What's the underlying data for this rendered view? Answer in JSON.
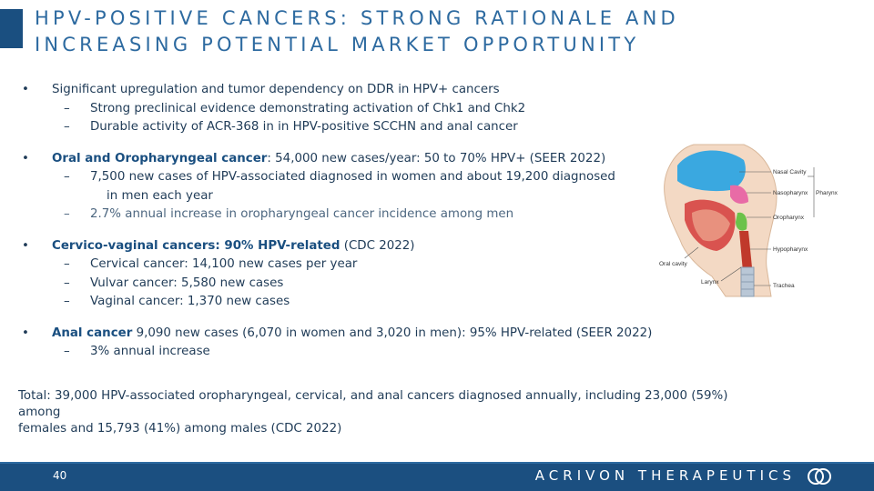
{
  "slide": {
    "title_line1": "HPV-POSITIVE CANCERS: STRONG RATIONALE AND",
    "title_line2": "INCREASING POTENTIAL MARKET OPPORTUNITY"
  },
  "bullets": {
    "b1": {
      "symbol": "•",
      "text": "Significant upregulation and tumor dependency on DDR in HPV+ cancers",
      "subs": [
        "Strong preclinical evidence demonstrating activation of Chk1 and Chk2",
        "Durable activity of ACR-368 in in HPV-positive SCCHN and anal cancer"
      ]
    },
    "b2": {
      "symbol": "•",
      "bold": "Oral and Oropharyngeal cancer",
      "text": ": 54,000 new cases/year: 50 to 70% HPV+ (SEER 2022)",
      "sub1_line1": "7,500 new cases of HPV-associated diagnosed in women and about 19,200 diagnosed",
      "sub1_line2": "in men each year",
      "sub2": "2.7% annual increase in oropharyngeal cancer incidence among men"
    },
    "b3": {
      "symbol": "•",
      "bold": "Cervico-vaginal cancers: 90% HPV-related",
      "text": " (CDC 2022)",
      "subs": [
        "Cervical cancer: 14,100 new cases per year",
        "Vulvar cancer: 5,580 new cases",
        "Vaginal cancer: 1,370 new cases"
      ]
    },
    "b4": {
      "symbol": "•",
      "bold": "Anal cancer",
      "text": " 9,090 new cases (6,070 in women and 3,020 in men): 95% HPV-related (SEER 2022)",
      "subs": [
        "3% annual increase"
      ]
    },
    "dash": "–"
  },
  "total": {
    "line1": "Total:  39,000 HPV-associated oropharyngeal, cervical, and anal cancers diagnosed annually, including 23,000 (59%) among",
    "line2": "females and 15,793 (41%) among males (CDC 2022)"
  },
  "illustration": {
    "labels": {
      "nasal_cavity": "Nasal Cavity",
      "nasopharynx": "Nasopharynx",
      "pharynx": "Pharynx",
      "oropharynx": "Oropharynx",
      "hypopharynx": "Hypopharynx",
      "oral_cavity": "Oral cavity",
      "larynx": "Larynx",
      "trachea": "Trachea"
    }
  },
  "footer": {
    "page_number": "40",
    "brand": "ACRIVON THERAPEUTICS"
  },
  "colors": {
    "accent": "#1a4f80",
    "title": "#2d6aa0",
    "body": "#1f3b57"
  }
}
